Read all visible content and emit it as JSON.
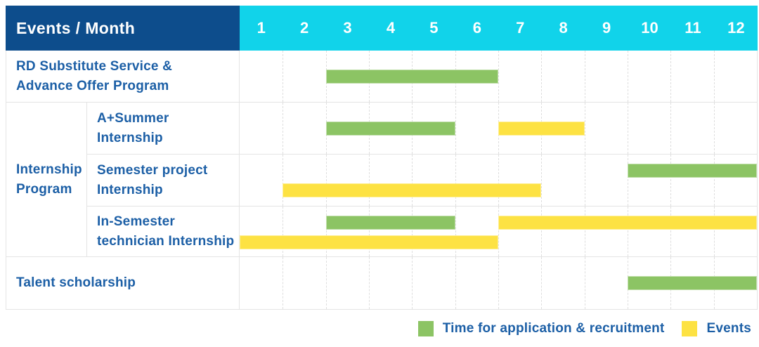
{
  "header": {
    "title": "Events / Month"
  },
  "colors": {
    "header_bg": "#0d4d8c",
    "months_bg": "#11d3ea",
    "label_text": "#1c5fa6",
    "grid_line": "#e4e4e4",
    "page_bg": "#ffffff"
  },
  "chart_data": {
    "type": "bar",
    "subtype": "gantt-schedule",
    "title": "Events / Month",
    "x_axis": {
      "label": "Month",
      "min": 1,
      "max": 12,
      "ticks": [
        "1",
        "2",
        "3",
        "4",
        "5",
        "6",
        "7",
        "8",
        "9",
        "10",
        "11",
        "12"
      ]
    },
    "legend_position": "bottom-right",
    "series": [
      {
        "key": "application",
        "name": "Time for application & recruitment",
        "color": "#8cc464"
      },
      {
        "key": "events",
        "name": "Events",
        "color": "#fde243"
      }
    ],
    "groups": [
      {
        "label": "Internship Program",
        "label_display": "Internship\nProgram",
        "row_indexes": [
          1,
          2,
          3
        ]
      }
    ],
    "rows": [
      {
        "task": "RD Substitute Service & Advance Offer Program",
        "task_display": "RD Substitute Service &\nAdvance Offer Program",
        "group": null,
        "levels": 1,
        "spans": [
          {
            "series": "application",
            "start_month": 3,
            "end_month": 6,
            "level": 0
          }
        ]
      },
      {
        "task": "A+Summer Internship",
        "task_display": "A+Summer\nInternship",
        "group": "Internship Program",
        "levels": 1,
        "spans": [
          {
            "series": "application",
            "start_month": 3,
            "end_month": 5,
            "level": 0
          },
          {
            "series": "events",
            "start_month": 7,
            "end_month": 8,
            "level": 0
          }
        ]
      },
      {
        "task": "Semester project Internship",
        "task_display": "Semester project\nInternship",
        "group": "Internship Program",
        "levels": 2,
        "spans": [
          {
            "series": "application",
            "start_month": 10,
            "end_month": 12,
            "level": 0
          },
          {
            "series": "events",
            "start_month": 2,
            "end_month": 7,
            "level": 1
          }
        ]
      },
      {
        "task": "In-Semester technician Internship",
        "task_display": "In-Semester\ntechnician Internship",
        "group": "Internship Program",
        "levels": 2,
        "spans": [
          {
            "series": "application",
            "start_month": 3,
            "end_month": 5,
            "level": 0
          },
          {
            "series": "events",
            "start_month": 7,
            "end_month": 12,
            "level": 0
          },
          {
            "series": "events",
            "start_month": 1,
            "end_month": 6,
            "level": 1
          }
        ]
      },
      {
        "task": "Talent scholarship",
        "task_display": "Talent scholarship",
        "group": null,
        "levels": 1,
        "spans": [
          {
            "series": "application",
            "start_month": 10,
            "end_month": 12,
            "level": 0
          }
        ]
      }
    ]
  }
}
